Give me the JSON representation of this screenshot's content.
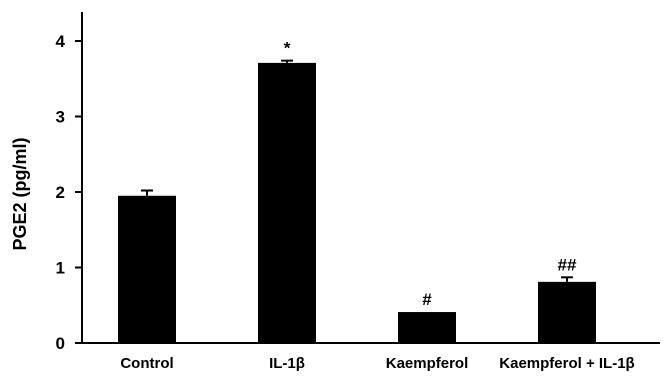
{
  "chart_data": {
    "type": "bar",
    "title": "",
    "xlabel": "",
    "ylabel": "PGE2 (pg/ml)",
    "ylim": [
      0,
      4.3
    ],
    "yticks": [
      0,
      1,
      2,
      3,
      4
    ],
    "grid": false,
    "legend": "none",
    "bar_color": "#000000",
    "categories": [
      "Control",
      "IL-1β",
      "Kaempferol",
      "Kaempferol + IL-1β"
    ],
    "values": [
      1.95,
      3.71,
      0.41,
      0.81
    ],
    "errors": [
      0.07,
      0.03,
      0.0,
      0.06
    ],
    "annotations": [
      "",
      "*",
      "#",
      "##"
    ]
  }
}
